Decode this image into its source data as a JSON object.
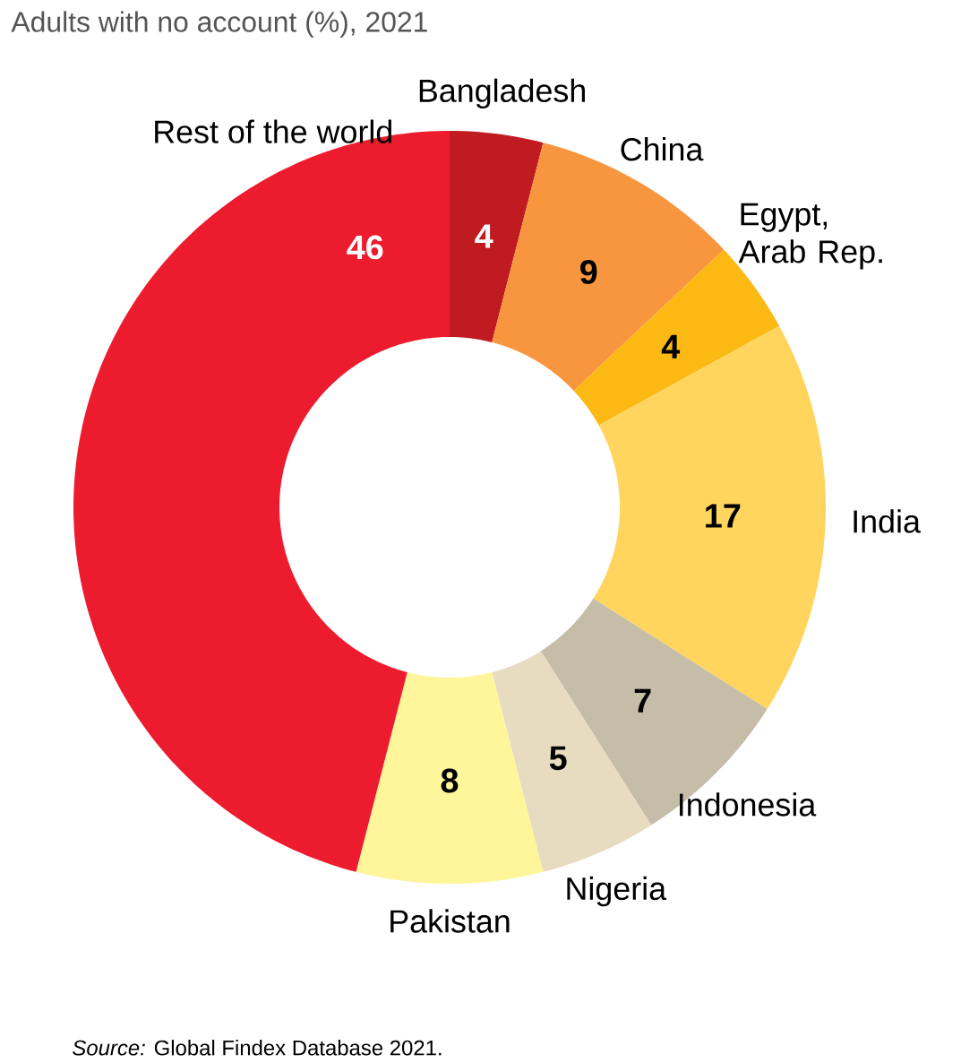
{
  "chart_data": {
    "type": "donut",
    "title": "Adults with no account (%), 2021",
    "categories": [
      "Bangladesh",
      "China",
      "Egypt, Arab Rep.",
      "India",
      "Indonesia",
      "Nigeria",
      "Pakistan",
      "Rest of the world"
    ],
    "values": [
      4,
      9,
      4,
      17,
      7,
      5,
      8,
      46
    ],
    "colors": [
      "#bf1b20",
      "#f7963e",
      "#fdb913",
      "#ffd55e",
      "#c6bda9",
      "#e8dcc0",
      "#fff59b",
      "#ec1c2e"
    ],
    "data_labels": true,
    "annotations": [
      "*Source:* Global Findex Database 2021."
    ]
  }
}
